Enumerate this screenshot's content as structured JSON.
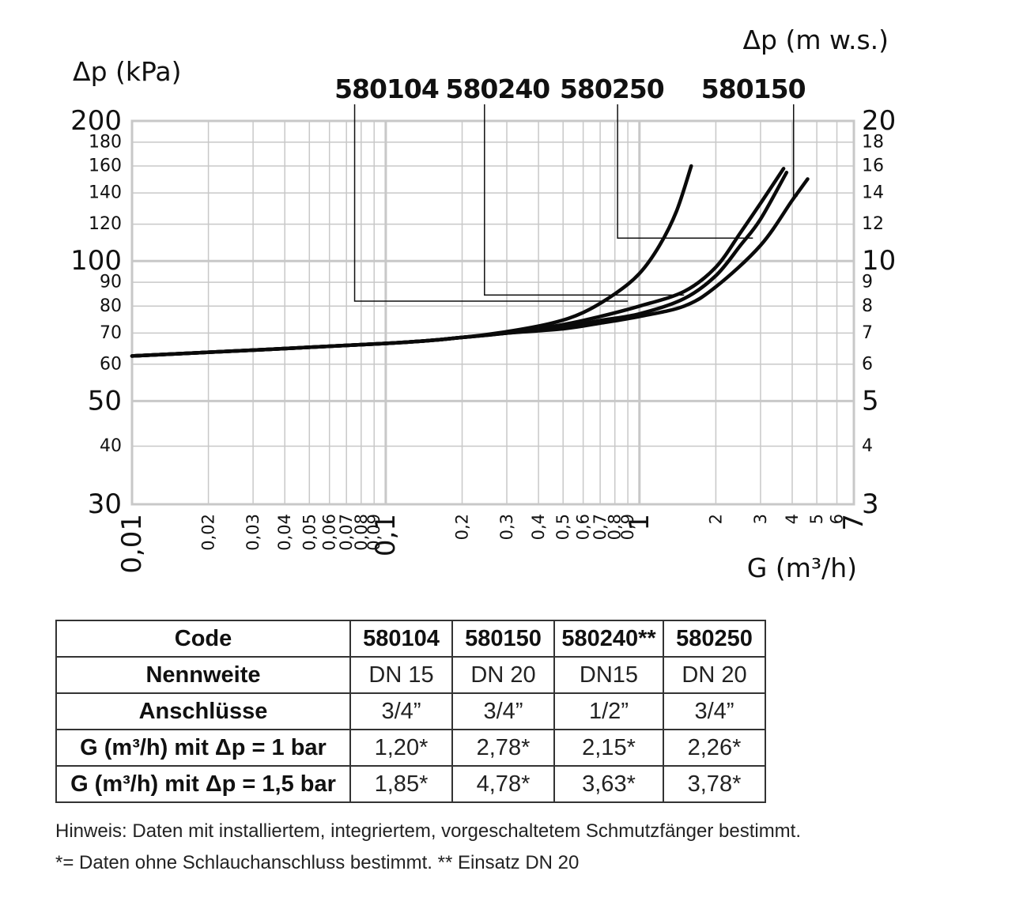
{
  "chart_data": {
    "type": "line",
    "x_scale": "log",
    "y_scale": "log",
    "xlim": [
      0.01,
      7
    ],
    "ylim": [
      30,
      200
    ],
    "y2lim": [
      3,
      20
    ],
    "xlabel": "G (m³/h)",
    "ylabel": "Δp (kPa)",
    "y2label": "Δp (m w.s.)",
    "grid": true,
    "x_ticks": [
      {
        "v": 0.01,
        "label": "0,01",
        "major": true
      },
      {
        "v": 0.02,
        "label": "0,02"
      },
      {
        "v": 0.03,
        "label": "0,03"
      },
      {
        "v": 0.04,
        "label": "0,04"
      },
      {
        "v": 0.05,
        "label": "0,05"
      },
      {
        "v": 0.06,
        "label": "0,06"
      },
      {
        "v": 0.07,
        "label": "0,07"
      },
      {
        "v": 0.08,
        "label": "0,08"
      },
      {
        "v": 0.09,
        "label": "0,09"
      },
      {
        "v": 0.1,
        "label": "0,1",
        "major": true
      },
      {
        "v": 0.2,
        "label": "0,2"
      },
      {
        "v": 0.3,
        "label": "0,3"
      },
      {
        "v": 0.4,
        "label": "0,4"
      },
      {
        "v": 0.5,
        "label": "0,5"
      },
      {
        "v": 0.6,
        "label": "0,6"
      },
      {
        "v": 0.7,
        "label": "0,7"
      },
      {
        "v": 0.8,
        "label": "0,8"
      },
      {
        "v": 0.9,
        "label": "0,9"
      },
      {
        "v": 1,
        "label": "1",
        "major": true
      },
      {
        "v": 2,
        "label": "2"
      },
      {
        "v": 3,
        "label": "3"
      },
      {
        "v": 4,
        "label": "4"
      },
      {
        "v": 5,
        "label": "5"
      },
      {
        "v": 6,
        "label": "6"
      },
      {
        "v": 7,
        "label": "7",
        "major": true
      }
    ],
    "y_ticks": [
      {
        "v": 200,
        "label": "200",
        "major": true
      },
      {
        "v": 180,
        "label": "180"
      },
      {
        "v": 160,
        "label": "160"
      },
      {
        "v": 140,
        "label": "140"
      },
      {
        "v": 120,
        "label": "120"
      },
      {
        "v": 100,
        "label": "100",
        "major": true
      },
      {
        "v": 90,
        "label": "90"
      },
      {
        "v": 80,
        "label": "80"
      },
      {
        "v": 70,
        "label": "70"
      },
      {
        "v": 60,
        "label": "60"
      },
      {
        "v": 50,
        "label": "50",
        "major": true
      },
      {
        "v": 40,
        "label": "40"
      },
      {
        "v": 30,
        "label": "30",
        "major": true
      }
    ],
    "y2_ticks": [
      {
        "v": 20,
        "label": "20",
        "major": true
      },
      {
        "v": 18,
        "label": "18"
      },
      {
        "v": 16,
        "label": "16"
      },
      {
        "v": 14,
        "label": "14"
      },
      {
        "v": 12,
        "label": "12"
      },
      {
        "v": 10,
        "label": "10",
        "major": true
      },
      {
        "v": 9,
        "label": "9"
      },
      {
        "v": 8,
        "label": "8"
      },
      {
        "v": 7,
        "label": "7"
      },
      {
        "v": 6,
        "label": "6"
      },
      {
        "v": 5,
        "label": "5",
        "major": true
      },
      {
        "v": 4,
        "label": "4"
      },
      {
        "v": 3,
        "label": "3",
        "major": true
      }
    ],
    "series": [
      {
        "name": "580104",
        "points": [
          [
            0.01,
            62.5
          ],
          [
            0.1,
            66.5
          ],
          [
            0.2,
            68.5
          ],
          [
            0.3,
            70.5
          ],
          [
            0.45,
            73.5
          ],
          [
            0.6,
            77.5
          ],
          [
            0.8,
            85
          ],
          [
            1,
            94
          ],
          [
            1.2,
            108
          ],
          [
            1.4,
            128
          ],
          [
            1.6,
            160
          ]
        ],
        "label_anchor": [
          0.9,
          82
        ]
      },
      {
        "name": "580240",
        "points": [
          [
            0.01,
            62.5
          ],
          [
            0.1,
            66.5
          ],
          [
            0.2,
            68.5
          ],
          [
            0.3,
            70
          ],
          [
            0.5,
            73
          ],
          [
            0.7,
            76
          ],
          [
            1,
            80
          ],
          [
            1.5,
            86
          ],
          [
            2,
            97
          ],
          [
            2.5,
            115
          ],
          [
            3,
            133
          ],
          [
            3.7,
            158
          ]
        ],
        "label_anchor": [
          1.5,
          84.5
        ]
      },
      {
        "name": "580250",
        "points": [
          [
            0.01,
            62.5
          ],
          [
            0.1,
            66.5
          ],
          [
            0.2,
            68.5
          ],
          [
            0.3,
            70
          ],
          [
            0.5,
            72
          ],
          [
            0.7,
            74.5
          ],
          [
            1,
            77
          ],
          [
            1.5,
            83
          ],
          [
            2,
            93
          ],
          [
            2.5,
            108
          ],
          [
            3,
            123
          ],
          [
            3.8,
            155
          ]
        ],
        "label_anchor": [
          2.8,
          112
        ]
      },
      {
        "name": "580150",
        "points": [
          [
            0.01,
            62.5
          ],
          [
            0.1,
            66.5
          ],
          [
            0.2,
            68.5
          ],
          [
            0.3,
            70
          ],
          [
            0.5,
            71.5
          ],
          [
            0.7,
            73.5
          ],
          [
            1,
            76
          ],
          [
            1.5,
            80
          ],
          [
            2,
            88
          ],
          [
            3,
            108
          ],
          [
            4,
            135
          ],
          [
            4.6,
            150
          ]
        ],
        "label_anchor": [
          4.2,
          138
        ]
      }
    ],
    "code_labels": [
      {
        "text": "580104",
        "x": 0.0628,
        "line_x": 0.0754
      },
      {
        "text": "580240",
        "x": 0.172,
        "line_x": 0.245
      },
      {
        "text": "580250",
        "x": 0.485,
        "line_x": 0.82
      },
      {
        "text": "580150",
        "x": 1.75,
        "line_x": 4.05
      }
    ]
  },
  "table": {
    "header": [
      "Code",
      "580104",
      "580150",
      "580240**",
      "580250"
    ],
    "rows": [
      {
        "label": "Nennweite",
        "values": [
          "DN 15",
          "DN 20",
          "DN15",
          "DN 20"
        ]
      },
      {
        "label": "Anschlüsse",
        "values": [
          "3/4”",
          "3/4”",
          "1/2”",
          "3/4”"
        ]
      },
      {
        "label": "G (m³/h) mit Δp = 1 bar",
        "values": [
          "1,20*",
          "2,78*",
          "2,15*",
          "2,26*"
        ]
      },
      {
        "label": "G (m³/h) mit Δp = 1,5 bar",
        "values": [
          "1,85*",
          "4,78*",
          "3,63*",
          "3,78*"
        ]
      }
    ]
  },
  "notes": {
    "line1": "Hinweis: Daten mit installiertem, integriertem, vorgeschaltetem Schmutzfänger bestimmt.",
    "line2": "*= Daten ohne Schlauchanschluss bestimmt.   ** Einsatz DN 20"
  }
}
